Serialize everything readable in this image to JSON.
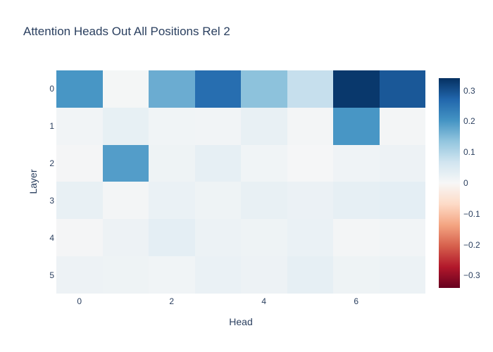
{
  "style": {
    "font_color": "#2a3f5f",
    "background": "#ffffff"
  },
  "chart_data": {
    "type": "heatmap",
    "title": "Attention Heads Out All Positions Rel 2",
    "xlabel": "Head",
    "ylabel": "Layer",
    "x": [
      0,
      1,
      2,
      3,
      4,
      5,
      6,
      7
    ],
    "y": [
      0,
      1,
      2,
      3,
      4,
      5
    ],
    "x_tick_labels": [
      "0",
      "2",
      "4",
      "6"
    ],
    "x_tick_positions": [
      0,
      2,
      4,
      6
    ],
    "y_tick_labels": [
      "0",
      "1",
      "2",
      "3",
      "4",
      "5"
    ],
    "rows": [
      [
        0.2,
        0.005,
        0.17,
        0.26,
        0.14,
        0.08,
        0.33,
        0.29
      ],
      [
        0.01,
        0.028,
        0.012,
        0.01,
        0.026,
        0.008,
        0.2,
        0.007
      ],
      [
        0.006,
        0.19,
        0.016,
        0.03,
        0.012,
        0.003,
        0.014,
        0.018
      ],
      [
        0.027,
        0.007,
        0.024,
        0.016,
        0.027,
        0.021,
        0.03,
        0.034
      ],
      [
        0.006,
        0.018,
        0.034,
        0.02,
        0.016,
        0.024,
        0.007,
        0.011
      ],
      [
        0.018,
        0.016,
        0.012,
        0.024,
        0.018,
        0.03,
        0.016,
        0.02
      ]
    ],
    "zmin": -0.34,
    "zmax": 0.34,
    "grid": false,
    "legend_position": "right",
    "colorscale_name": "RdBu reversed (blue = positive)",
    "colorscale": [
      [
        0.0,
        "#67001f"
      ],
      [
        0.1,
        "#b2182b"
      ],
      [
        0.2,
        "#d6604d"
      ],
      [
        0.3,
        "#f4a582"
      ],
      [
        0.4,
        "#fddbc7"
      ],
      [
        0.5,
        "#f7f7f7"
      ],
      [
        0.6,
        "#d1e5f0"
      ],
      [
        0.7,
        "#92c5de"
      ],
      [
        0.8,
        "#4393c3"
      ],
      [
        0.9,
        "#2166ac"
      ],
      [
        1.0,
        "#053061"
      ]
    ],
    "colorbar": {
      "tick_values": [
        0.3,
        0.2,
        0.1,
        0,
        -0.1,
        -0.2,
        -0.3
      ],
      "tick_labels": [
        "0.3",
        "0.2",
        "0.1",
        "0",
        "−0.1",
        "−0.2",
        "−0.3"
      ]
    }
  }
}
